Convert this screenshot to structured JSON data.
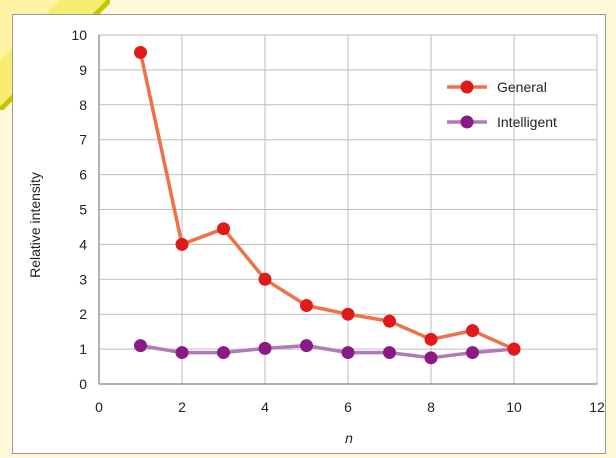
{
  "colors": {
    "background": "#fff9d9",
    "accent": "#d6d400",
    "grid": "#bdbdbd",
    "axis": "#7f7f7f",
    "general_line": "#f0704a",
    "general_marker": "#e0191b",
    "intelligent_line": "#b07ab8",
    "intelligent_marker": "#8a1a86"
  },
  "chart_data": {
    "type": "line",
    "xlabel": "n",
    "ylabel": "Relative intensity",
    "xlim": [
      0,
      12
    ],
    "ylim": [
      0,
      10
    ],
    "xticks": [
      0,
      2,
      4,
      6,
      8,
      10,
      12
    ],
    "yticks": [
      0,
      1,
      2,
      3,
      4,
      5,
      6,
      7,
      8,
      9,
      10
    ],
    "grid": true,
    "legend_position": "top-right",
    "series": [
      {
        "name": "General",
        "x": [
          1,
          2,
          3,
          4,
          5,
          6,
          7,
          8,
          9,
          10
        ],
        "y": [
          9.5,
          4.0,
          4.45,
          3.0,
          2.25,
          2.0,
          1.8,
          1.28,
          1.53,
          1.0
        ]
      },
      {
        "name": "Intelligent",
        "x": [
          1,
          2,
          3,
          4,
          5,
          6,
          7,
          8,
          9,
          10
        ],
        "y": [
          1.1,
          0.9,
          0.9,
          1.02,
          1.1,
          0.9,
          0.9,
          0.75,
          0.9,
          1.0
        ]
      }
    ]
  }
}
